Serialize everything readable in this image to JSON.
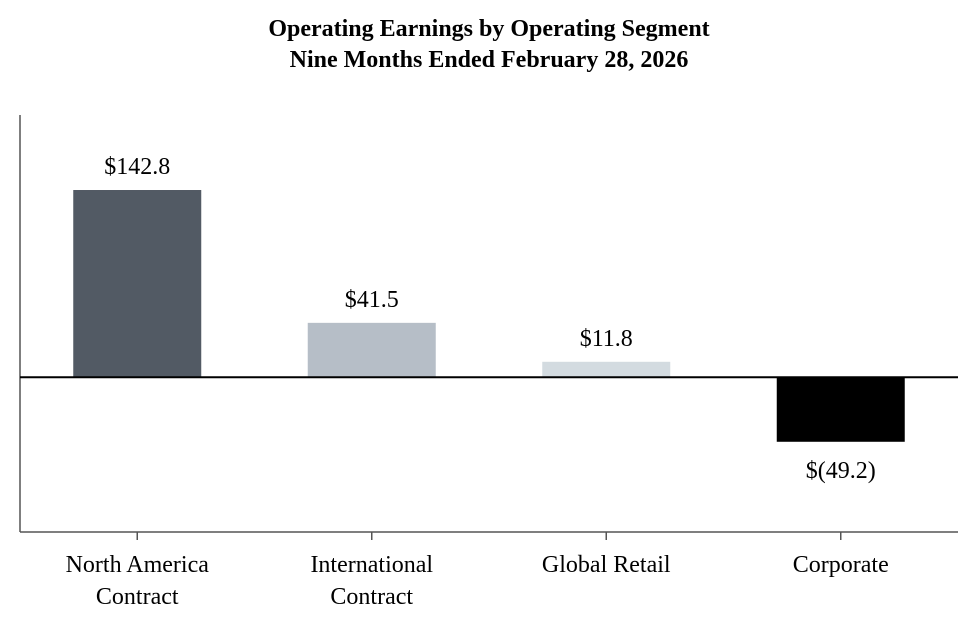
{
  "chart_data": {
    "type": "bar",
    "title": "Operating Earnings by Operating Segment",
    "subtitle": "Nine Months Ended February 28, 2026",
    "categories": [
      [
        "North America",
        "Contract"
      ],
      [
        "International",
        "Contract"
      ],
      [
        "Global Retail"
      ],
      [
        "Corporate"
      ]
    ],
    "values": [
      142.8,
      41.5,
      11.8,
      -49.2
    ],
    "data_labels": [
      "$142.8",
      "$41.5",
      "$11.8",
      "$(49.2)"
    ],
    "colors": [
      "#525a64",
      "#b6bec7",
      "#d3dbe0",
      "#000000"
    ],
    "ylim": [
      -118,
      200
    ],
    "xlabel": "",
    "ylabel": "",
    "grid": false,
    "legend": "none"
  }
}
